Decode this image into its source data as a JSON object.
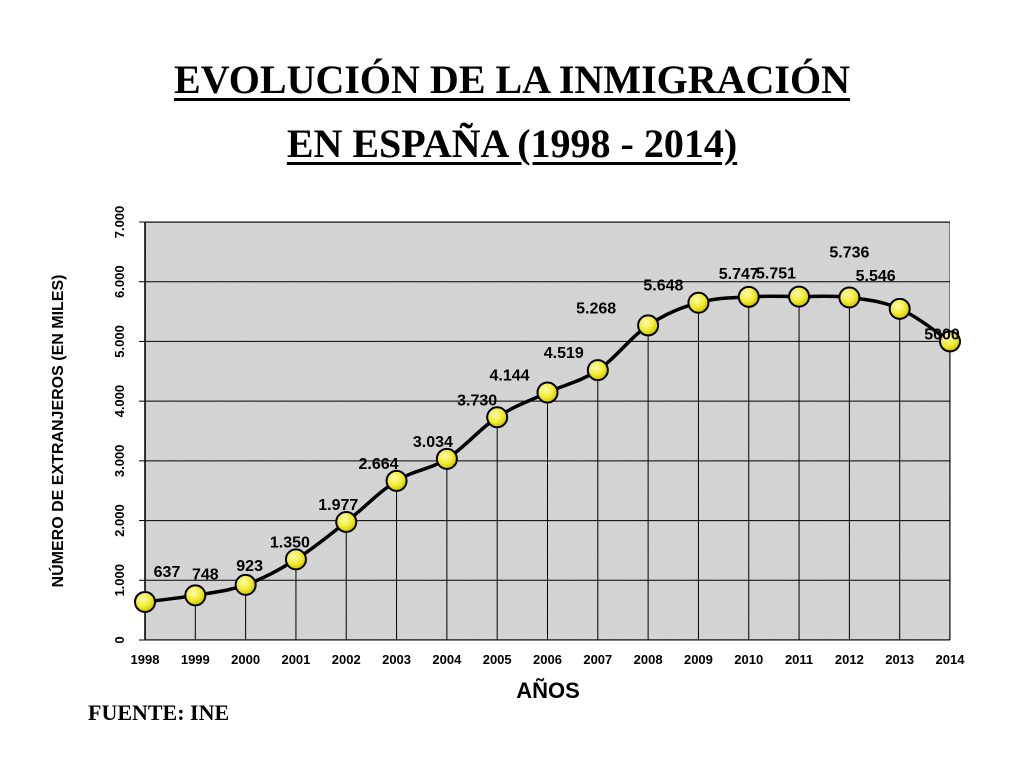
{
  "title_line1": "EVOLUCIÓN DE LA INMIGRACIÓN",
  "title_line2": "EN ESPAÑA (1998 - 2014)",
  "source": "FUENTE: INE",
  "colors": {
    "marker_fill": "#f2ec2b",
    "line": "#000000",
    "gridline": "#000000",
    "plot_background": "#d9d9d9"
  },
  "chart_data": {
    "type": "line",
    "xlabel": "AÑOS",
    "ylabel": "NÚMERO DE EXTRANJEROS (EN MILES)",
    "ylim": [
      0,
      7000
    ],
    "yticks": [
      {
        "value": 0,
        "label": "0"
      },
      {
        "value": 1000,
        "label": "1.000"
      },
      {
        "value": 2000,
        "label": "2.000"
      },
      {
        "value": 3000,
        "label": "3.000"
      },
      {
        "value": 4000,
        "label": "4.000"
      },
      {
        "value": 5000,
        "label": "5.000"
      },
      {
        "value": 6000,
        "label": "6.000"
      },
      {
        "value": 7000,
        "label": "7.000"
      }
    ],
    "grid": true,
    "legend": "none",
    "categories": [
      "1998",
      "1999",
      "2000",
      "2001",
      "2002",
      "2003",
      "2004",
      "2005",
      "2006",
      "2007",
      "2008",
      "2009",
      "2010",
      "2011",
      "2012",
      "2013",
      "2014"
    ],
    "values": [
      637,
      748,
      923,
      1350,
      1977,
      2664,
      3034,
      3730,
      4144,
      4519,
      5268,
      5648,
      5747,
      5751,
      5736,
      5546,
      5000
    ],
    "data_labels": [
      "637",
      "748",
      "923",
      "1.350",
      "1.977",
      "2.664",
      "3.034",
      "3.730",
      "4.144",
      "4.519",
      "5.268",
      "5.648",
      "5.747",
      "5.751",
      "5.736",
      "5.546",
      "5000"
    ]
  }
}
